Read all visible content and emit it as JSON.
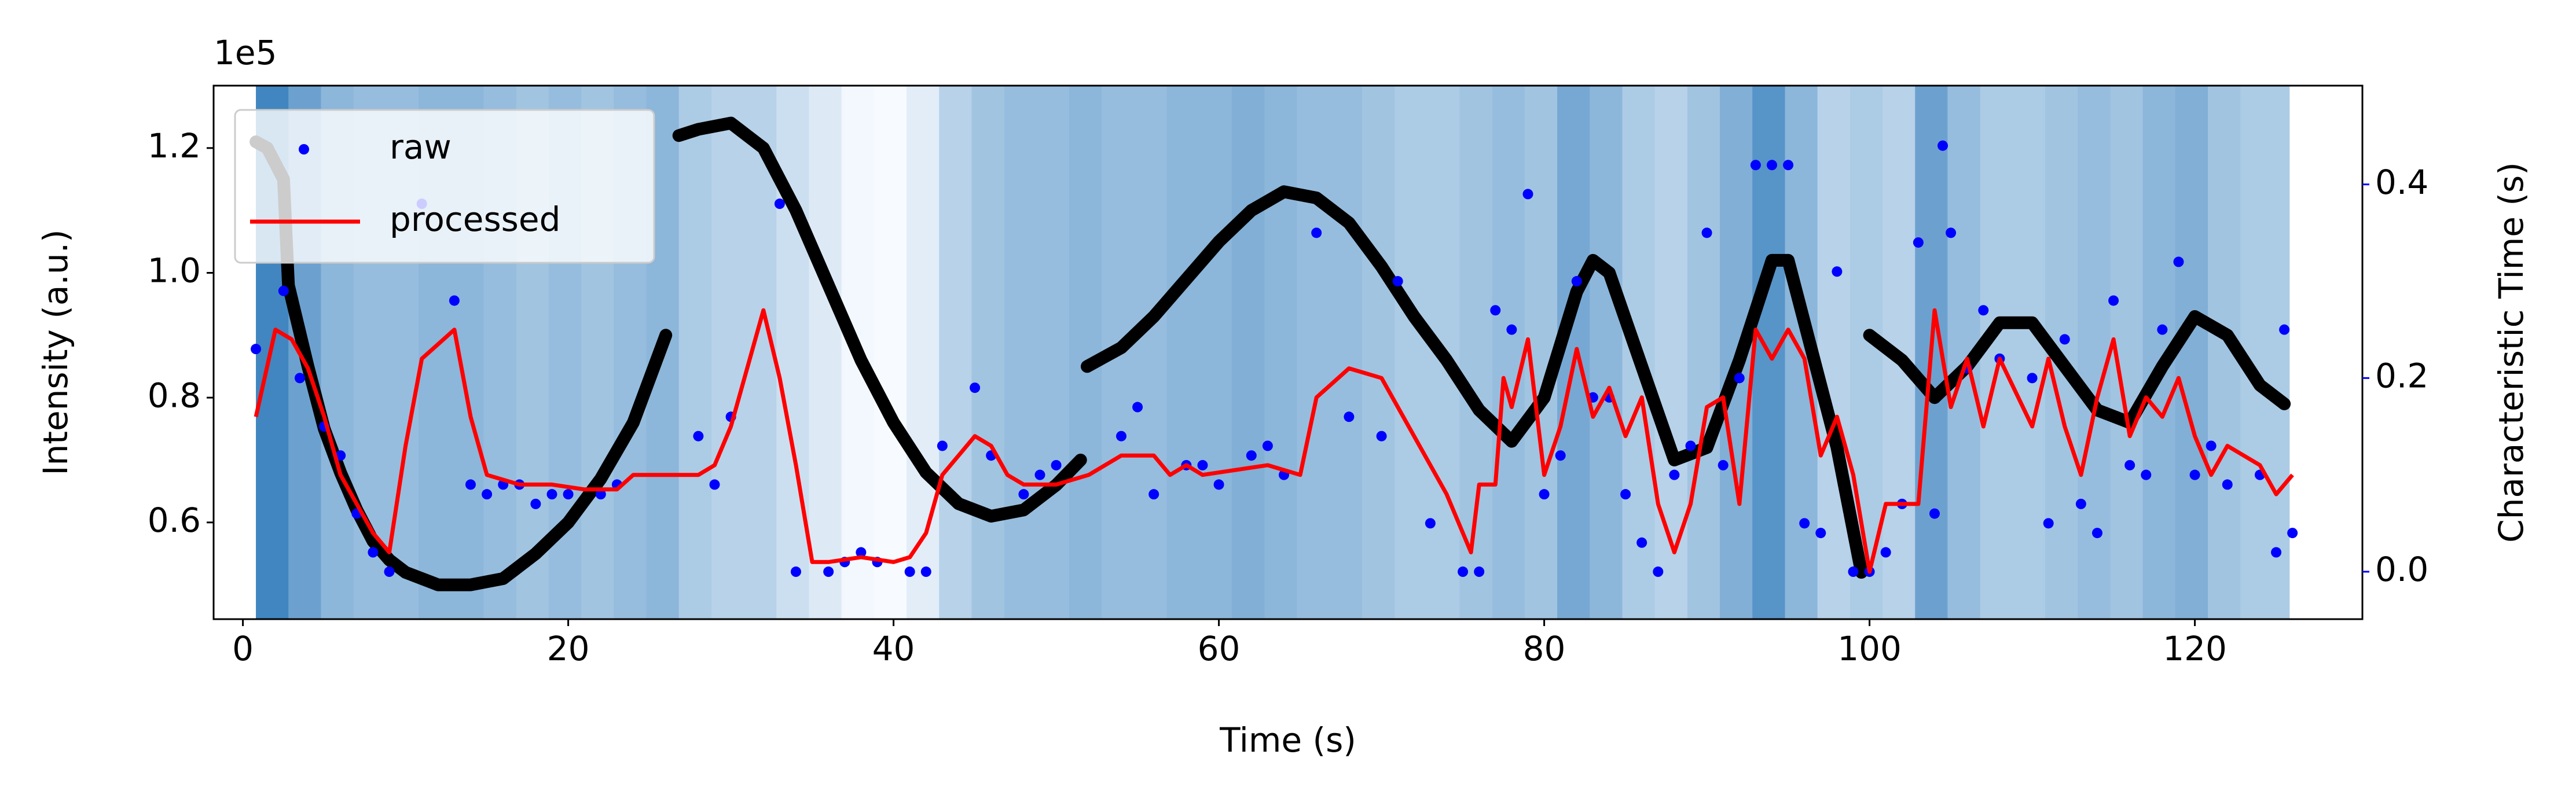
{
  "chart_data": {
    "type": "scatter",
    "xlabel": "Time (s)",
    "ylabel": "Intensity (a.u.)",
    "y2label": "Characteristic Time (s)",
    "y_offset_label": "1e5",
    "xlim": [
      -1.8,
      130.3
    ],
    "ylim": [
      0.445,
      1.3
    ],
    "y2lim": [
      -0.049,
      0.502
    ],
    "xticks": [
      0,
      20,
      40,
      60,
      80,
      100,
      120
    ],
    "yticks": [
      0.6,
      0.8,
      {
        "value": 1,
        "label": "1.0"
      },
      1.2
    ],
    "y2ticks": [
      {
        "value": 0,
        "label": "0.0"
      },
      0.2,
      0.4
    ],
    "y2color": "blue",
    "legend": "upper-left",
    "heatmap": {
      "colormap": "Blues",
      "bins": [
        0.8,
        2.8,
        4.8,
        6.8,
        8.8,
        10.8,
        12.8,
        14.8,
        16.8,
        18.8,
        20.8,
        22.8,
        24.8,
        26.8,
        28.8,
        30.8,
        32.8,
        34.8,
        36.8,
        38.8,
        40.8,
        42.8,
        44.8,
        46.8,
        48.8,
        50.8,
        52.8,
        54.8,
        56.8,
        58.8,
        60.8,
        62.8,
        64.8,
        66.8,
        68.8,
        70.8,
        72.8,
        74.8,
        76.8,
        78.8,
        80.8,
        82.8,
        84.8,
        86.8,
        88.8,
        90.8,
        92.8,
        94.8,
        96.8,
        98.8,
        100.8,
        102.8,
        104.8,
        106.8,
        108.8,
        110.8,
        112.8,
        114.8,
        116.8,
        118.8,
        120.8,
        122.8,
        124.8,
        125.8
      ],
      "values": [
        0.85,
        0.65,
        0.5,
        0.45,
        0.45,
        0.5,
        0.5,
        0.45,
        0.4,
        0.45,
        0.4,
        0.45,
        0.5,
        0.35,
        0.3,
        0.3,
        0.2,
        0.12,
        0.02,
        0,
        0.1,
        0.3,
        0.4,
        0.45,
        0.45,
        0.5,
        0.45,
        0.45,
        0.5,
        0.5,
        0.55,
        0.5,
        0.45,
        0.45,
        0.4,
        0.35,
        0.35,
        0.4,
        0.45,
        0.4,
        0.6,
        0.5,
        0.35,
        0.3,
        0.4,
        0.55,
        0.75,
        0.5,
        0.3,
        0.35,
        0.3,
        0.65,
        0.45,
        0.35,
        0.35,
        0.4,
        0.45,
        0.4,
        0.5,
        0.55,
        0.4,
        0.35,
        0.35
      ]
    },
    "intensity": {
      "color": "black",
      "x": [
        0.8,
        1.5,
        2.5,
        2.8,
        4,
        5,
        6,
        7,
        8,
        9,
        10,
        12,
        14,
        16,
        18,
        20,
        22,
        24,
        26,
        26.4,
        26.8,
        28,
        30,
        32,
        34,
        36,
        38,
        40,
        42,
        44,
        46,
        48,
        50,
        51.5,
        51.7,
        51.9,
        54,
        56,
        58,
        60,
        62,
        64,
        66,
        68,
        70,
        72,
        74,
        76,
        78,
        80,
        82,
        83,
        84,
        86,
        88,
        90,
        92,
        94,
        95,
        96,
        98,
        99.5,
        99.8,
        100,
        102,
        104,
        106,
        108,
        110,
        112,
        114,
        116,
        118,
        120,
        122,
        124,
        125.5
      ],
      "values": [
        1.21,
        1.2,
        1.15,
        0.98,
        0.85,
        0.75,
        0.68,
        0.62,
        0.57,
        0.54,
        0.52,
        0.5,
        0.5,
        0.51,
        0.55,
        0.6,
        0.67,
        0.76,
        0.9,
        null,
        1.22,
        1.23,
        1.24,
        1.2,
        1.1,
        0.98,
        0.86,
        0.76,
        0.68,
        0.63,
        0.61,
        0.62,
        0.66,
        0.7,
        null,
        0.85,
        0.88,
        0.93,
        0.99,
        1.05,
        1.1,
        1.13,
        1.12,
        1.08,
        1.01,
        0.93,
        0.86,
        0.78,
        0.73,
        0.8,
        0.97,
        1.02,
        1.0,
        0.85,
        0.7,
        0.72,
        0.86,
        1.02,
        1.02,
        0.92,
        0.72,
        0.52,
        null,
        0.9,
        0.86,
        0.8,
        0.85,
        0.92,
        0.92,
        0.85,
        0.78,
        0.76,
        0.85,
        0.93,
        0.9,
        0.82,
        0.79
      ]
    },
    "series": [
      {
        "name": "raw",
        "type": "scatter",
        "axis": "y2",
        "color": "blue",
        "x": [
          0.8,
          2.5,
          3.5,
          5,
          6,
          7,
          8,
          9,
          11,
          13,
          14,
          15,
          16,
          17,
          18,
          19,
          20,
          22,
          23,
          28,
          29,
          30,
          33,
          34,
          36,
          37,
          38,
          39,
          41,
          42,
          43,
          45,
          46,
          48,
          49,
          50,
          54,
          55,
          56,
          58,
          59,
          60,
          62,
          63,
          64,
          66,
          68,
          70,
          71,
          73,
          75,
          76,
          77,
          78,
          79,
          80,
          81,
          82,
          83,
          84,
          85,
          86,
          87,
          88,
          89,
          90,
          91,
          92,
          93,
          94,
          95,
          96,
          97,
          98,
          99,
          100,
          101,
          102,
          103,
          104,
          104.5,
          105,
          106,
          107,
          108,
          110,
          111,
          112,
          113,
          114,
          115,
          116,
          117,
          118,
          119,
          120,
          121,
          122,
          124,
          125,
          125.5,
          126
        ],
        "values": [
          0.23,
          0.29,
          0.2,
          0.15,
          0.12,
          0.06,
          0.02,
          0,
          0.38,
          0.28,
          0.09,
          0.08,
          0.09,
          0.09,
          0.07,
          0.08,
          0.08,
          0.08,
          0.09,
          0.14,
          0.09,
          0.16,
          0.38,
          0,
          0,
          0.01,
          0.02,
          0.01,
          0,
          0,
          0.13,
          0.19,
          0.12,
          0.08,
          0.1,
          0.11,
          0.14,
          0.17,
          0.08,
          0.11,
          0.11,
          0.09,
          0.12,
          0.13,
          0.1,
          0.35,
          0.16,
          0.14,
          0.3,
          0.05,
          0,
          0,
          0.27,
          0.25,
          0.39,
          0.08,
          0.12,
          0.3,
          0.18,
          0.18,
          0.08,
          0.03,
          0,
          0.1,
          0.13,
          0.35,
          0.11,
          0.2,
          0.42,
          0.42,
          0.42,
          0.05,
          0.04,
          0.31,
          0,
          0,
          0.02,
          0.07,
          0.34,
          0.06,
          0.44,
          0.35,
          0.21,
          0.27,
          0.22,
          0.2,
          0.05,
          0.24,
          0.07,
          0.04,
          0.28,
          0.11,
          0.1,
          0.25,
          0.32,
          0.1,
          0.13,
          0.09,
          0.1,
          0.02,
          0.25,
          0.04
        ]
      },
      {
        "name": "processed",
        "type": "line",
        "axis": "y2",
        "color": "red",
        "x": [
          0.8,
          2,
          3,
          4,
          5,
          6,
          7,
          8,
          9,
          10,
          11,
          13,
          14,
          15,
          17,
          19,
          21,
          23,
          24,
          28,
          29,
          30,
          32,
          33,
          34,
          35,
          36,
          38,
          40,
          41,
          42,
          43,
          45,
          46,
          47,
          48,
          50,
          52,
          54,
          56,
          57,
          58,
          59,
          61,
          63,
          64,
          65,
          66,
          68,
          70,
          72,
          74,
          75.5,
          76,
          77,
          77.5,
          78,
          79,
          80,
          81,
          82,
          83,
          84,
          85,
          86,
          87,
          88,
          89,
          90,
          91,
          92,
          93,
          94,
          95,
          96,
          97,
          98,
          99,
          100,
          101,
          103,
          104,
          105,
          106,
          107,
          108,
          110,
          111,
          112,
          113,
          114,
          115,
          116,
          117,
          118,
          119,
          120,
          121,
          122,
          124,
          125,
          126
        ],
        "values": [
          0.16,
          0.25,
          0.24,
          0.21,
          0.16,
          0.1,
          0.07,
          0.04,
          0.02,
          0.13,
          0.22,
          0.25,
          0.16,
          0.1,
          0.09,
          0.09,
          0.085,
          0.085,
          0.1,
          0.1,
          0.11,
          0.15,
          0.27,
          0.2,
          0.11,
          0.01,
          0.01,
          0.015,
          0.01,
          0.015,
          0.04,
          0.1,
          0.14,
          0.13,
          0.1,
          0.09,
          0.09,
          0.1,
          0.12,
          0.12,
          0.1,
          0.11,
          0.1,
          0.105,
          0.11,
          0.105,
          0.1,
          0.18,
          0.21,
          0.2,
          0.14,
          0.08,
          0.02,
          0.09,
          0.09,
          0.2,
          0.17,
          0.24,
          0.1,
          0.15,
          0.23,
          0.16,
          0.19,
          0.14,
          0.18,
          0.07,
          0.02,
          0.07,
          0.17,
          0.18,
          0.07,
          0.25,
          0.22,
          0.25,
          0.22,
          0.12,
          0.16,
          0.1,
          0,
          0.07,
          0.07,
          0.27,
          0.17,
          0.22,
          0.15,
          0.22,
          0.15,
          0.22,
          0.15,
          0.1,
          0.18,
          0.24,
          0.14,
          0.18,
          0.16,
          0.2,
          0.14,
          0.1,
          0.13,
          0.11,
          0.08,
          0.1
        ]
      }
    ]
  }
}
